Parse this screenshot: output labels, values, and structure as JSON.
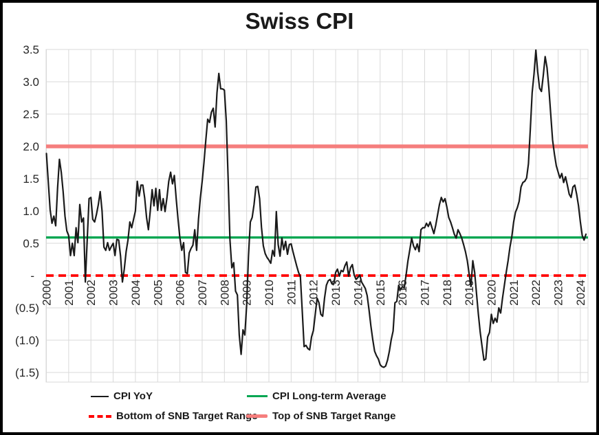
{
  "chart_data": {
    "type": "line",
    "title": "Swiss CPI",
    "xlabel": "",
    "ylabel": "",
    "grid": true,
    "legend_position": "bottom",
    "x_frequency": "monthly",
    "x_tick_labels": [
      "2000",
      "2001",
      "2002",
      "2003",
      "2004",
      "2005",
      "2006",
      "2007",
      "2008",
      "2009",
      "2010",
      "2011",
      "2012",
      "2013",
      "2014",
      "2015",
      "2016",
      "2017",
      "2018",
      "2019",
      "2020",
      "2021",
      "2022",
      "2023",
      "2024"
    ],
    "y_tick_labels": [
      "3.5",
      "3.0",
      "2.5",
      "2.0",
      "1.5",
      "1.0",
      "0.5",
      "-",
      "(0.5)",
      "(1.0)",
      "(1.5)"
    ],
    "y_tick_values": [
      3.5,
      3.0,
      2.5,
      2.0,
      1.5,
      1.0,
      0.5,
      0,
      -0.5,
      -1.0,
      -1.5
    ],
    "ylim": [
      -1.68,
      3.5
    ],
    "series": [
      {
        "name": "CPI YoY",
        "color": "#1a1a1a",
        "style": "solid",
        "start_year": 2000,
        "values": [
          1.89,
          1.45,
          1.02,
          0.81,
          0.92,
          0.77,
          1.35,
          1.8,
          1.6,
          1.3,
          0.92,
          0.69,
          0.62,
          0.31,
          0.5,
          0.31,
          0.74,
          0.51,
          1.1,
          0.83,
          0.89,
          -0.1,
          0.55,
          1.19,
          1.21,
          0.87,
          0.83,
          0.95,
          1.1,
          1.3,
          1.0,
          0.44,
          0.39,
          0.51,
          0.39,
          0.45,
          0.5,
          0.31,
          0.56,
          0.55,
          0.3,
          -0.1,
          0.1,
          0.37,
          0.55,
          0.83,
          0.74,
          0.87,
          1.0,
          1.46,
          1.23,
          1.4,
          1.4,
          1.2,
          0.9,
          0.71,
          1.0,
          1.33,
          1.08,
          1.35,
          1.01,
          1.33,
          1.01,
          1.19,
          0.99,
          1.2,
          1.46,
          1.6,
          1.42,
          1.55,
          1.19,
          0.87,
          0.58,
          0.39,
          0.51,
          0.05,
          0.03,
          0.35,
          0.42,
          0.47,
          0.71,
          0.39,
          0.87,
          1.2,
          1.46,
          1.75,
          2.1,
          2.42,
          2.37,
          2.53,
          2.59,
          2.3,
          2.83,
          3.13,
          2.89,
          2.89,
          2.87,
          2.4,
          1.51,
          0.55,
          0.12,
          0.2,
          -0.24,
          -0.3,
          -0.92,
          -1.22,
          -0.84,
          -0.92,
          -0.45,
          0.3,
          0.83,
          0.9,
          1.1,
          1.37,
          1.38,
          1.19,
          0.75,
          0.46,
          0.34,
          0.28,
          0.24,
          0.19,
          0.39,
          0.3,
          0.99,
          0.48,
          0.3,
          0.58,
          0.4,
          0.53,
          0.33,
          0.48,
          0.49,
          0.37,
          0.26,
          0.15,
          0.05,
          -0.02,
          -0.55,
          -1.1,
          -1.08,
          -1.13,
          -1.15,
          -0.95,
          -0.85,
          -0.6,
          -0.35,
          -0.42,
          -0.6,
          -0.63,
          -0.35,
          -0.15,
          -0.08,
          -0.06,
          -0.13,
          -0.13,
          0.05,
          0.1,
          -0.01,
          0.08,
          0.06,
          0.15,
          0.21,
          -0.01,
          0.12,
          0.17,
          0.01,
          -0.06,
          -0.03,
          0.01,
          -0.1,
          -0.15,
          -0.2,
          -0.31,
          -0.53,
          -0.78,
          -0.99,
          -1.17,
          -1.24,
          -1.29,
          -1.38,
          -1.41,
          -1.42,
          -1.4,
          -1.31,
          -1.17,
          -0.99,
          -0.86,
          -0.42,
          -0.4,
          -0.15,
          -0.22,
          -0.17,
          -0.19,
          0.01,
          0.23,
          0.4,
          0.58,
          0.46,
          0.4,
          0.49,
          0.37,
          0.71,
          0.74,
          0.74,
          0.81,
          0.76,
          0.83,
          0.74,
          0.65,
          0.78,
          0.94,
          1.1,
          1.21,
          1.14,
          1.19,
          1.06,
          0.9,
          0.83,
          0.74,
          0.64,
          0.58,
          0.71,
          0.65,
          0.58,
          0.48,
          0.37,
          0.23,
          0.03,
          -0.17,
          0.23,
          0.05,
          -0.28,
          -0.6,
          -0.88,
          -1.1,
          -1.31,
          -1.29,
          -0.95,
          -0.88,
          -0.6,
          -0.74,
          -0.66,
          -0.72,
          -0.5,
          -0.58,
          -0.35,
          -0.15,
          0.05,
          0.23,
          0.44,
          0.6,
          0.83,
          0.98,
          1.05,
          1.15,
          1.37,
          1.44,
          1.46,
          1.51,
          1.73,
          2.26,
          2.83,
          3.12,
          3.49,
          3.15,
          2.9,
          2.85,
          3.1,
          3.39,
          3.22,
          2.9,
          2.5,
          2.1,
          1.88,
          1.7,
          1.6,
          1.51,
          1.58,
          1.44,
          1.53,
          1.4,
          1.26,
          1.21,
          1.37,
          1.4,
          1.26,
          1.08,
          0.83,
          0.62,
          0.55,
          0.64
        ]
      },
      {
        "name": "CPI Long-term Average",
        "color": "#00a651",
        "style": "solid",
        "value": 0.59
      },
      {
        "name": "Bottom of SNB Target Range",
        "color": "#ff0000",
        "style": "dashed",
        "value": 0.0
      },
      {
        "name": "Top of SNB Target Range",
        "color": "#f57e7d",
        "style": "solid",
        "value": 2.0
      }
    ]
  },
  "legend": [
    {
      "label": "CPI YoY"
    },
    {
      "label": "CPI Long-term Average"
    },
    {
      "label": "Bottom of SNB Target Range"
    },
    {
      "label": "Top of SNB Target Range"
    }
  ],
  "colors": {
    "cpi_line": "#1a1a1a",
    "long_term_avg": "#00a651",
    "snb_bottom": "#ff0000",
    "snb_top": "#f57e7d",
    "grid": "#d9d9d9",
    "text": "#262626",
    "border": "#000000",
    "background": "#ffffff"
  }
}
